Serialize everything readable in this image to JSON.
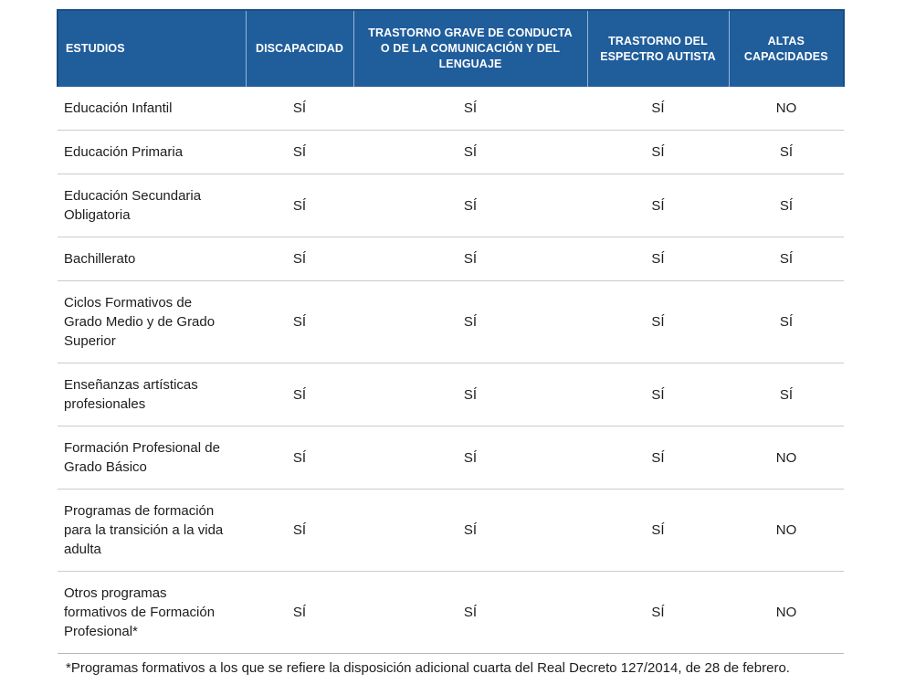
{
  "chart_data": {
    "type": "table",
    "title": "",
    "columns": [
      "ESTUDIOS",
      "DISCAPACIDAD",
      "TRASTORNO GRAVE DE CONDUCTA O DE LA COMUNICACIÓN Y DEL LENGUAJE",
      "TRASTORNO DEL ESPECTRO AUTISTA",
      "ALTAS CAPACIDADES"
    ],
    "rows": [
      [
        "Educación Infantil",
        "SÍ",
        "SÍ",
        "SÍ",
        "NO"
      ],
      [
        "Educación Primaria",
        "SÍ",
        "SÍ",
        "SÍ",
        "SÍ"
      ],
      [
        "Educación Secundaria Obligatoria",
        "SÍ",
        "SÍ",
        "SÍ",
        "SÍ"
      ],
      [
        "Bachillerato",
        "SÍ",
        "SÍ",
        "SÍ",
        "SÍ"
      ],
      [
        "Ciclos Formativos de Grado Medio y de Grado Superior",
        "SÍ",
        "SÍ",
        "SÍ",
        "SÍ"
      ],
      [
        "Enseñanzas artísticas profesionales",
        "SÍ",
        "SÍ",
        "SÍ",
        "SÍ"
      ],
      [
        "Formación Profesional de Grado Básico",
        "SÍ",
        "SÍ",
        "SÍ",
        "NO"
      ],
      [
        "Programas de formación para la transición a la vida adulta",
        "SÍ",
        "SÍ",
        "SÍ",
        "NO"
      ],
      [
        "Otros programas formativos de Formación Profesional*",
        "SÍ",
        "SÍ",
        "SÍ",
        "NO"
      ]
    ],
    "legend": null,
    "grid": "horizontal-dividers-only"
  },
  "footnote": "*Programas formativos a los que se refiere la disposición adicional cuarta del Real Decreto 127/2014, de 28 de febrero.",
  "colors": {
    "header_bg": "#205d9b",
    "header_text": "#ffffff",
    "header_outline": "#194c80",
    "header_divider": "rgba(255,255,255,0.55)",
    "body_text": "#1d1d1b",
    "row_divider": "#cbcbcb",
    "footer_divider": "#b7b7b7",
    "page_bg": "#ffffff"
  }
}
